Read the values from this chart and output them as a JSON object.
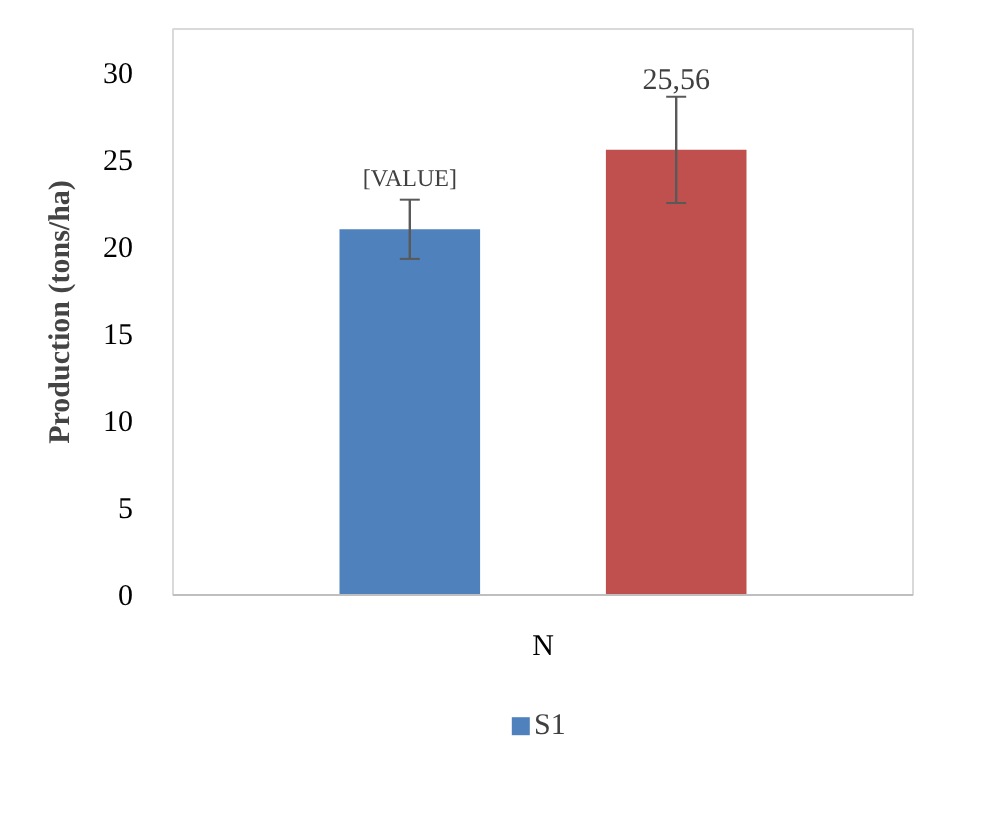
{
  "chart_data": {
    "type": "bar",
    "ylabel": "Production (tons/ha)",
    "categories": [
      "N"
    ],
    "series": [
      {
        "name": "S1",
        "color": "#4f81bd",
        "values": [
          21.0
        ],
        "errors": [
          1.7
        ],
        "value_labels": [
          "[VALUE]"
        ]
      },
      {
        "color": "#c0504d",
        "values": [
          25.56
        ],
        "errors": [
          3.05
        ],
        "value_labels": [
          "25,56"
        ]
      }
    ],
    "ylim": [
      0,
      32.5
    ],
    "yticks": [
      0,
      5,
      10,
      15,
      20,
      25,
      30
    ],
    "grid": false,
    "legend": "bottom"
  }
}
